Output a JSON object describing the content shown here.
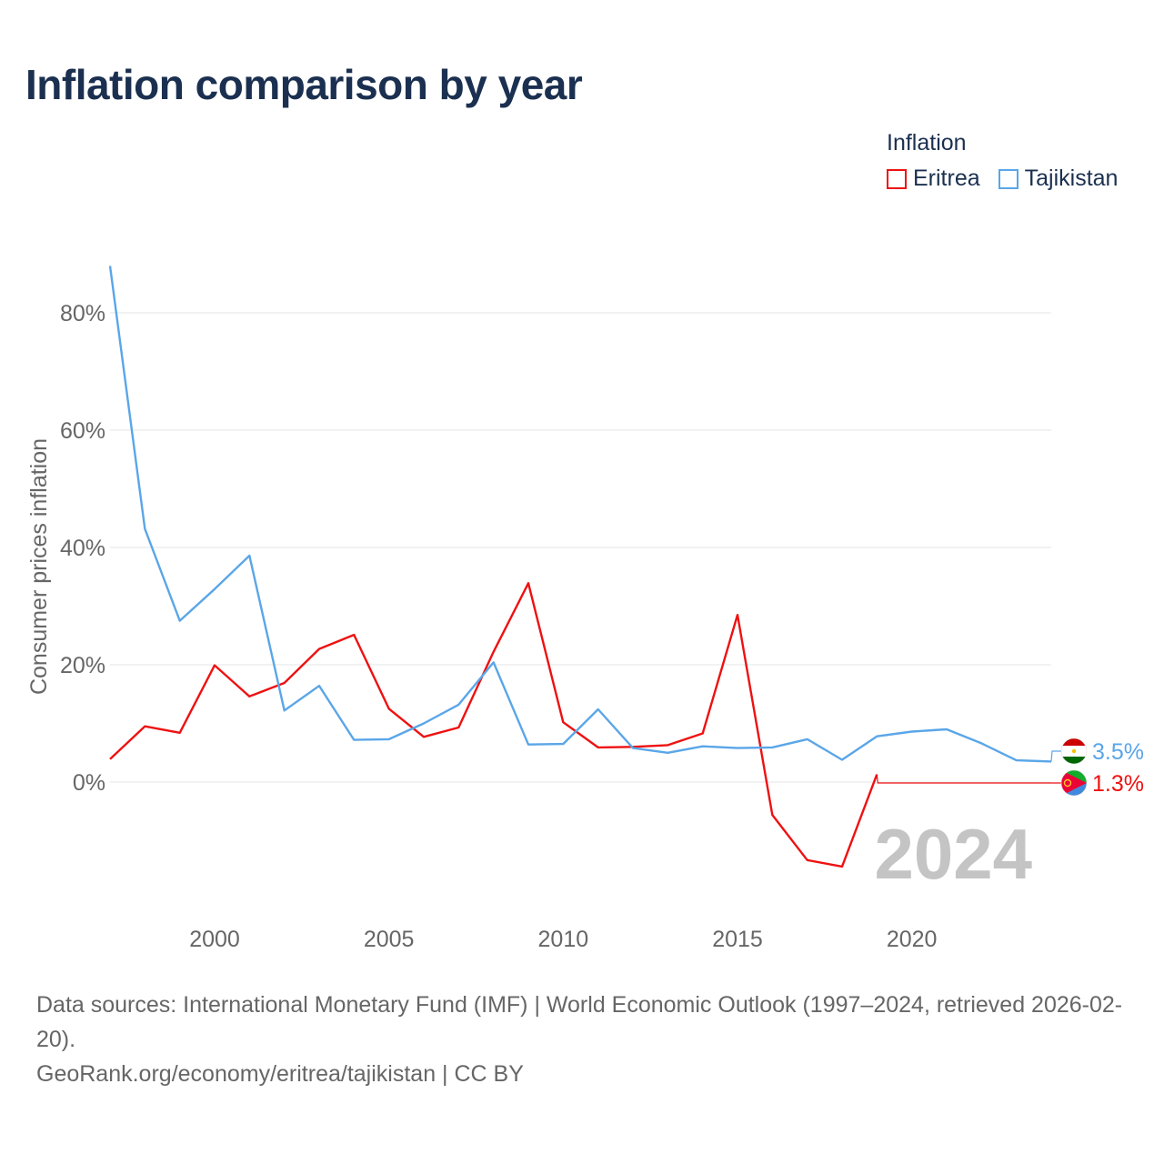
{
  "title": "Inflation comparison by year",
  "legend": {
    "title": "Inflation",
    "entries": [
      {
        "label": "Eritrea",
        "color": "#ee1111"
      },
      {
        "label": "Tajikistan",
        "color": "#5aa6e8"
      }
    ]
  },
  "chart_data": {
    "type": "line",
    "title": "Inflation comparison by year",
    "xlabel": "",
    "ylabel": "Consumer prices inflation",
    "ylim": [
      -20,
      90
    ],
    "xlim": [
      1997,
      2024
    ],
    "y_ticks": [
      0,
      20,
      40,
      60,
      80
    ],
    "y_tick_labels": [
      "0%",
      "20%",
      "40%",
      "60%",
      "80%"
    ],
    "x_ticks": [
      2000,
      2005,
      2010,
      2015,
      2020
    ],
    "x_tick_labels": [
      "2000",
      "2005",
      "2010",
      "2015",
      "2020"
    ],
    "year_label": "2024",
    "grid": true,
    "series": [
      {
        "name": "Eritrea",
        "color": "#ee1111",
        "x": [
          1997,
          1998,
          1999,
          2000,
          2001,
          2002,
          2003,
          2004,
          2005,
          2006,
          2007,
          2008,
          2009,
          2010,
          2011,
          2012,
          2013,
          2014,
          2015,
          2016,
          2017,
          2018,
          2019
        ],
        "values": [
          3.9,
          9.5,
          8.4,
          19.9,
          14.6,
          16.9,
          22.7,
          25.1,
          12.5,
          7.7,
          9.3,
          22.2,
          33.9,
          10.2,
          5.9,
          6.0,
          6.3,
          8.3,
          28.5,
          -5.6,
          -13.3,
          -14.4,
          1.3
        ],
        "end_label": "1.3%"
      },
      {
        "name": "Tajikistan",
        "color": "#5aa6e8",
        "x": [
          1997,
          1998,
          1999,
          2000,
          2001,
          2002,
          2003,
          2004,
          2005,
          2006,
          2007,
          2008,
          2009,
          2010,
          2011,
          2012,
          2013,
          2014,
          2015,
          2016,
          2017,
          2018,
          2019,
          2020,
          2021,
          2022,
          2023,
          2024
        ],
        "values": [
          88.0,
          43.2,
          27.5,
          32.9,
          38.6,
          12.2,
          16.4,
          7.2,
          7.3,
          10.0,
          13.2,
          20.4,
          6.4,
          6.5,
          12.4,
          5.8,
          5.0,
          6.1,
          5.8,
          5.9,
          7.3,
          3.8,
          7.8,
          8.6,
          9.0,
          6.6,
          3.7,
          3.5
        ],
        "end_label": "3.5%"
      }
    ]
  },
  "footer": {
    "sources": "Data sources: International Monetary Fund (IMF) | World Economic Outlook (1997–2024, retrieved 2026-02-20).",
    "credit": "GeoRank.org/economy/eritrea/tajikistan | CC BY"
  }
}
